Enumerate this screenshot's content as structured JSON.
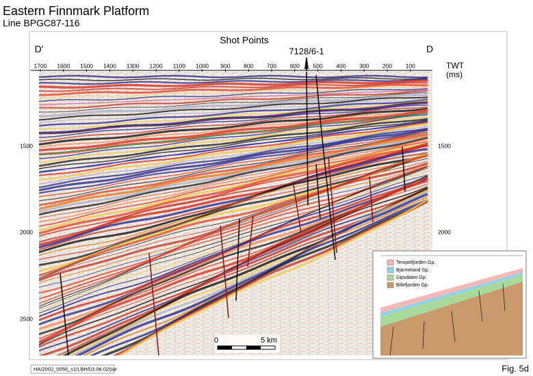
{
  "header": {
    "title": "Eastern Finnmark Platform",
    "subtitle": "Line BPGC87-116"
  },
  "section": {
    "x_axis_label": "Shot Points",
    "left_label": "D'",
    "right_label": "D",
    "well_label": "7128/6-1",
    "shot_points": [
      "1700",
      "1600",
      "1500",
      "1400",
      "1300",
      "1200",
      "1100",
      "1000",
      "900",
      "800",
      "700",
      "600",
      "500",
      "400",
      "300",
      "200",
      "100"
    ],
    "y_axis_label": [
      "TWT",
      "(ms)"
    ],
    "twt_left": [
      "1500",
      "2000",
      "2500"
    ],
    "twt_right": [
      "1500",
      "2000"
    ],
    "scale_bar": [
      "0",
      "5 km"
    ]
  },
  "inset": {
    "legend": [
      {
        "label": "Tempelfjorden Gp.",
        "color": "#f5b8b4"
      },
      {
        "label": "Bjarmeland Gp.",
        "color": "#8fd3ea"
      },
      {
        "label": "Gipsdalen Gp.",
        "color": "#a9d99a"
      },
      {
        "label": "Billefjorden Gp.",
        "color": "#c99a6b"
      }
    ]
  },
  "footer": {
    "reference": "HA/2002_0055_s1/LBH/03.06.02/jse",
    "figure": "Fig. 5d"
  }
}
